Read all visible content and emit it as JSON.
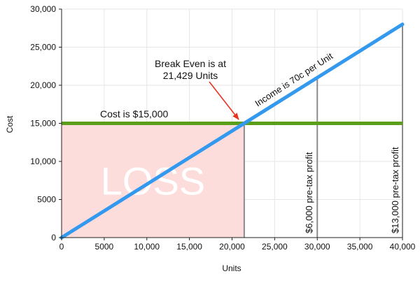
{
  "chart_data": {
    "type": "line",
    "title": "",
    "xlabel": "Units",
    "ylabel": "Cost",
    "xlim": [
      0,
      40000
    ],
    "ylim": [
      0,
      30000
    ],
    "x_ticks": [
      0,
      5000,
      10000,
      15000,
      20000,
      25000,
      30000,
      35000,
      40000
    ],
    "x_tick_labels": [
      "0",
      "5000",
      "10,000",
      "15,000",
      "20,000",
      "25,000",
      "30,000",
      "35,000",
      "40,000"
    ],
    "y_ticks": [
      0,
      5000,
      10000,
      15000,
      20000,
      25000,
      30000
    ],
    "y_tick_labels": [
      "0",
      "5000",
      "10,000",
      "15,000",
      "20,000",
      "25,000",
      "30,000"
    ],
    "grid": true,
    "series": [
      {
        "key": "income",
        "x": [
          0,
          40000
        ],
        "y": [
          0,
          28000
        ],
        "color": "#3399ee"
      },
      {
        "key": "cost",
        "x": [
          0,
          40000
        ],
        "y": [
          15000,
          15000
        ],
        "color": "#5a9e1a"
      }
    ],
    "loss_region": {
      "x": [
        0,
        21429
      ],
      "y": [
        0,
        15000
      ],
      "color": "#fddcdc"
    },
    "profit_markers": [
      {
        "x": 21429,
        "y_from": 0,
        "y_to": 15000
      },
      {
        "x": 30000,
        "y_from": 0,
        "y_to": 21000
      },
      {
        "x": 40000,
        "y_from": 0,
        "y_to": 28000
      }
    ],
    "annotations": {
      "break_even_line1": "Break Even is at",
      "break_even_line2": "21,429 Units",
      "break_even_point": {
        "x": 21429,
        "y": 15000
      },
      "cost_label": "Cost is $15,000",
      "income_label": "Income is 70c per Unit",
      "loss_label": "LOSS",
      "profit_30000_label": "$6,000 pre-tax profit",
      "profit_40000_label": "$13,000 pre-tax profit"
    }
  }
}
